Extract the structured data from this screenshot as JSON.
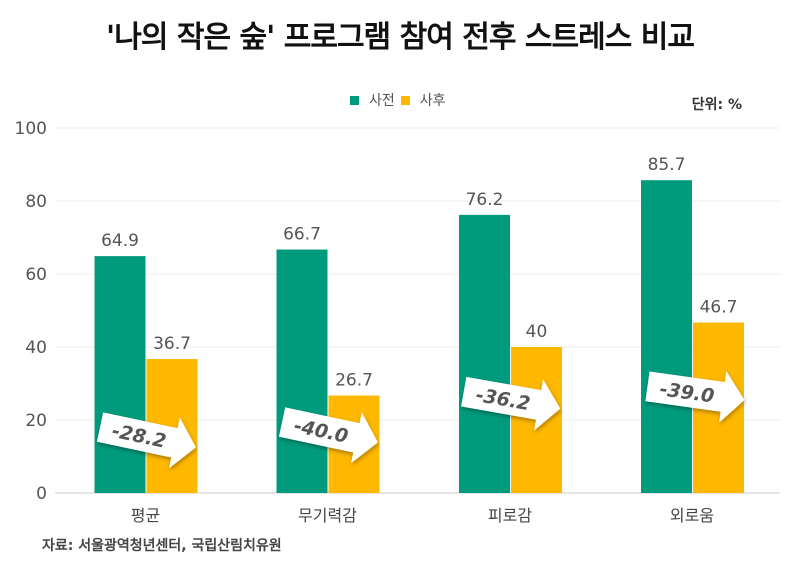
{
  "chart_data": {
    "type": "bar",
    "title": "'나의 작은 숲' 프로그램 참여 전후 스트레스 비교",
    "unit_label": "단위: %",
    "categories": [
      "평균",
      "무기력감",
      "피로감",
      "외로움"
    ],
    "series": [
      {
        "name": "사전",
        "values": [
          64.9,
          66.7,
          76.2,
          85.7
        ],
        "color": "#009B7D"
      },
      {
        "name": "사후",
        "values": [
          36.7,
          26.7,
          40,
          46.7
        ],
        "color": "#FFB800"
      }
    ],
    "value_labels": {
      "사전": [
        "64.9",
        "66.7",
        "76.2",
        "85.7"
      ],
      "사후": [
        "36.7",
        "26.7",
        "40",
        "46.7"
      ]
    },
    "change_annotations": [
      "-28.2",
      "-40.0",
      "-36.2",
      "-39.0"
    ],
    "ylim": [
      0,
      100
    ],
    "yticks": [
      "0",
      "20",
      "40",
      "60",
      "80",
      "100"
    ],
    "grid": true,
    "legend_position": "top-center",
    "source": "자료: 서울광역청년센터, 국립산림치유원"
  }
}
